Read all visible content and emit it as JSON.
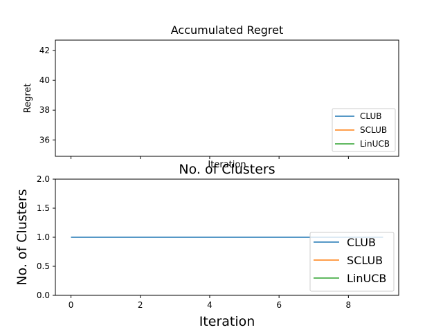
{
  "chart_data": [
    {
      "type": "line",
      "title": "Accumulated Regret",
      "xlabel": "Iteration",
      "ylabel": "Regret",
      "ylim": [
        34.9,
        42.7
      ],
      "yticks": [
        "36",
        "38",
        "40",
        "42"
      ],
      "yticks_values": [
        36,
        38,
        40,
        42
      ],
      "xticks_values": [
        0,
        2,
        4,
        6,
        8
      ],
      "xlim": [
        -0.45,
        9.45
      ],
      "grid": false,
      "legend_position": "lower-right",
      "series": [
        {
          "name": "CLUB",
          "color": "#1f77b4",
          "x": [],
          "y": []
        },
        {
          "name": "SCLUB",
          "color": "#ff7f0e",
          "x": [],
          "y": []
        },
        {
          "name": "LinUCB",
          "color": "#2ca02c",
          "x": [],
          "y": []
        }
      ]
    },
    {
      "type": "line",
      "title": "No. of Clusters",
      "xlabel": "Iteration",
      "ylabel": "No. of Clusters",
      "ylim": [
        0.0,
        2.0
      ],
      "xlim": [
        -0.45,
        9.45
      ],
      "yticks": [
        "0.0",
        "0.5",
        "1.0",
        "1.5",
        "2.0"
      ],
      "yticks_values": [
        0.0,
        0.5,
        1.0,
        1.5,
        2.0
      ],
      "xticks": [
        "0",
        "2",
        "4",
        "6",
        "8"
      ],
      "xticks_values": [
        0,
        2,
        4,
        6,
        8
      ],
      "grid": false,
      "legend_position": "lower-right",
      "series": [
        {
          "name": "CLUB",
          "color": "#1f77b4",
          "x": [
            0,
            1,
            2,
            3,
            4,
            5,
            6,
            7,
            8,
            9
          ],
          "y": [
            1,
            1,
            1,
            1,
            1,
            1,
            1,
            1,
            1,
            1
          ]
        },
        {
          "name": "SCLUB",
          "color": "#ff7f0e",
          "x": [],
          "y": []
        },
        {
          "name": "LinUCB",
          "color": "#2ca02c",
          "x": [],
          "y": []
        }
      ]
    }
  ]
}
